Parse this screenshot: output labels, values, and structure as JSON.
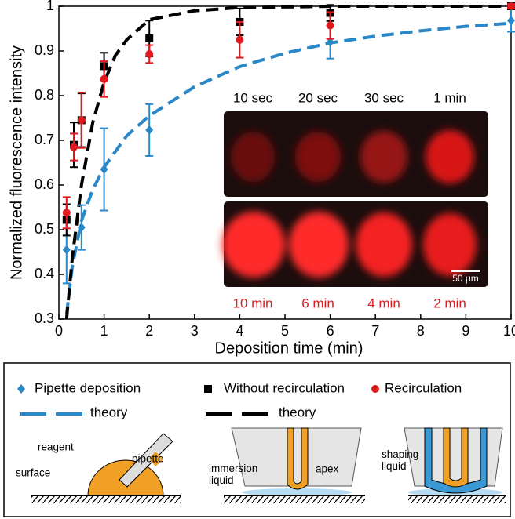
{
  "chart_data": {
    "type": "scatter",
    "xlabel": "Deposition time (min)",
    "ylabel": "Normalized fluorescence intensity",
    "xlim": [
      0,
      10
    ],
    "ylim": [
      0.3,
      1
    ],
    "xticks": [
      0,
      1,
      2,
      3,
      4,
      5,
      6,
      7,
      8,
      9,
      10
    ],
    "yticks": [
      0.3,
      0.4,
      0.5,
      0.6,
      0.7,
      0.8,
      0.9,
      1
    ],
    "series": [
      {
        "name": "Pipette deposition",
        "color": "#2a88c8",
        "marker": "diamond",
        "x": [
          0.17,
          0.5,
          1,
          2,
          6,
          10
        ],
        "values": [
          0.455,
          0.505,
          0.635,
          0.723,
          0.92,
          0.968
        ],
        "errors": [
          0.075,
          0.05,
          0.092,
          0.058,
          0.037,
          0.025
        ]
      },
      {
        "name": "Without recirculation",
        "color": "#000000",
        "marker": "square",
        "x": [
          0.17,
          0.33,
          0.5,
          1,
          2,
          4,
          6,
          10
        ],
        "values": [
          0.522,
          0.69,
          0.745,
          0.866,
          0.928,
          0.965,
          0.985,
          1
        ],
        "errors": [
          0.035,
          0.05,
          0.06,
          0.03,
          0.04,
          0.03,
          0.018,
          0.005
        ]
      },
      {
        "name": "Recirculation",
        "color": "#e0191e",
        "marker": "circle",
        "x": [
          0.17,
          0.33,
          0.5,
          1,
          2,
          4,
          6,
          10
        ],
        "values": [
          0.538,
          0.685,
          0.745,
          0.837,
          0.893,
          0.925,
          0.957,
          1
        ],
        "errors": [
          0.035,
          0.03,
          0.062,
          0.04,
          0.02,
          0.04,
          0.03,
          0.005
        ]
      }
    ],
    "theory": [
      {
        "name": "theory",
        "color": "#2a88c8",
        "x": [
          0.17,
          0.3,
          0.5,
          0.75,
          1,
          1.5,
          2,
          3,
          4,
          5,
          6,
          7,
          8,
          9,
          10
        ],
        "values": [
          0.31,
          0.42,
          0.52,
          0.59,
          0.64,
          0.71,
          0.755,
          0.82,
          0.865,
          0.895,
          0.918,
          0.933,
          0.945,
          0.955,
          0.962
        ]
      },
      {
        "name": "theory",
        "color": "#000000",
        "x": [
          0.17,
          0.3,
          0.5,
          0.75,
          1,
          1.25,
          1.5,
          2,
          3,
          4,
          6,
          10
        ],
        "values": [
          0.3,
          0.44,
          0.6,
          0.74,
          0.83,
          0.89,
          0.925,
          0.97,
          0.99,
          0.997,
          1,
          1
        ]
      }
    ],
    "inset": {
      "top_labels": [
        "10 sec",
        "20 sec",
        "30 sec",
        "1 min"
      ],
      "bottom_labels": [
        "10 min",
        "6 min",
        "4 min",
        "2 min"
      ],
      "scale_bar": "50 μm"
    },
    "diagram_labels": {
      "reagent": "reagent",
      "pipette": "pipette",
      "surface": "surface",
      "immersion": "immersion\nliquid",
      "apex": "apex",
      "shaping": "shaping\nliquid"
    }
  }
}
